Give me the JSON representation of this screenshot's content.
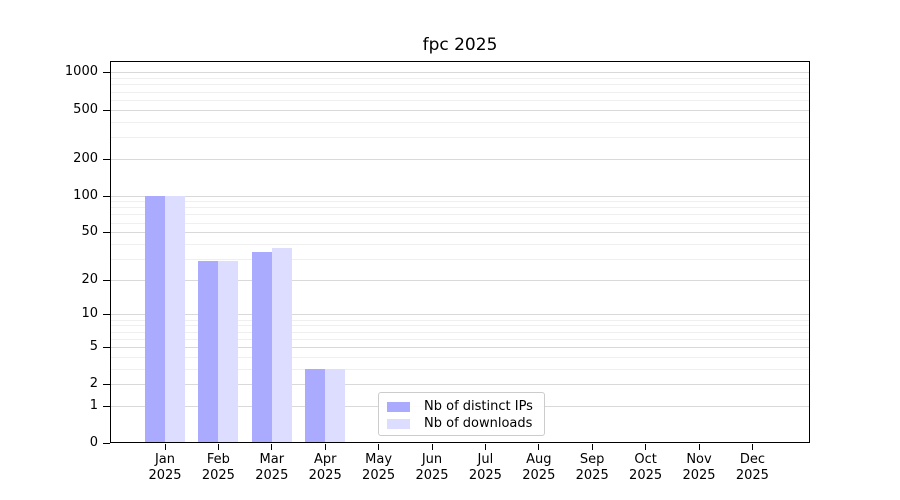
{
  "title": "fpc 2025",
  "chart_data": {
    "type": "bar",
    "title": "fpc 2025",
    "categories": [
      "Jan 2025",
      "Feb 2025",
      "Mar 2025",
      "Apr 2025",
      "May 2025",
      "Jun 2025",
      "Jul 2025",
      "Aug 2025",
      "Sep 2025",
      "Oct 2025",
      "Nov 2025",
      "Dec 2025"
    ],
    "series": [
      {
        "name": "Nb of distinct IPs",
        "color": "#aaaaff",
        "values": [
          100,
          29,
          34,
          3,
          0,
          0,
          0,
          0,
          0,
          0,
          0,
          0
        ]
      },
      {
        "name": "Nb of downloads",
        "color": "#ddddff",
        "values": [
          100,
          29,
          37,
          3,
          0,
          0,
          0,
          0,
          0,
          0,
          0,
          0
        ]
      }
    ],
    "yscale": "log1p",
    "yticks": [
      0,
      1,
      2,
      5,
      10,
      20,
      50,
      100,
      200,
      500,
      1000
    ],
    "yticks_minor": [
      3,
      4,
      6,
      7,
      8,
      9,
      30,
      40,
      60,
      70,
      80,
      90,
      300,
      400,
      600,
      700,
      800,
      900
    ],
    "ylim": [
      0,
      1240
    ],
    "xlabel": "",
    "ylabel": "",
    "grid": "horizontal-major-and-minor",
    "legend_position": "inside-bottom-center"
  },
  "colors": {
    "distinct_ips": "#aaaaff",
    "downloads": "#ddddff",
    "grid_major": "#d9d9d9",
    "grid_minor": "#efefef",
    "axis": "#000000",
    "background": "#ffffff"
  }
}
